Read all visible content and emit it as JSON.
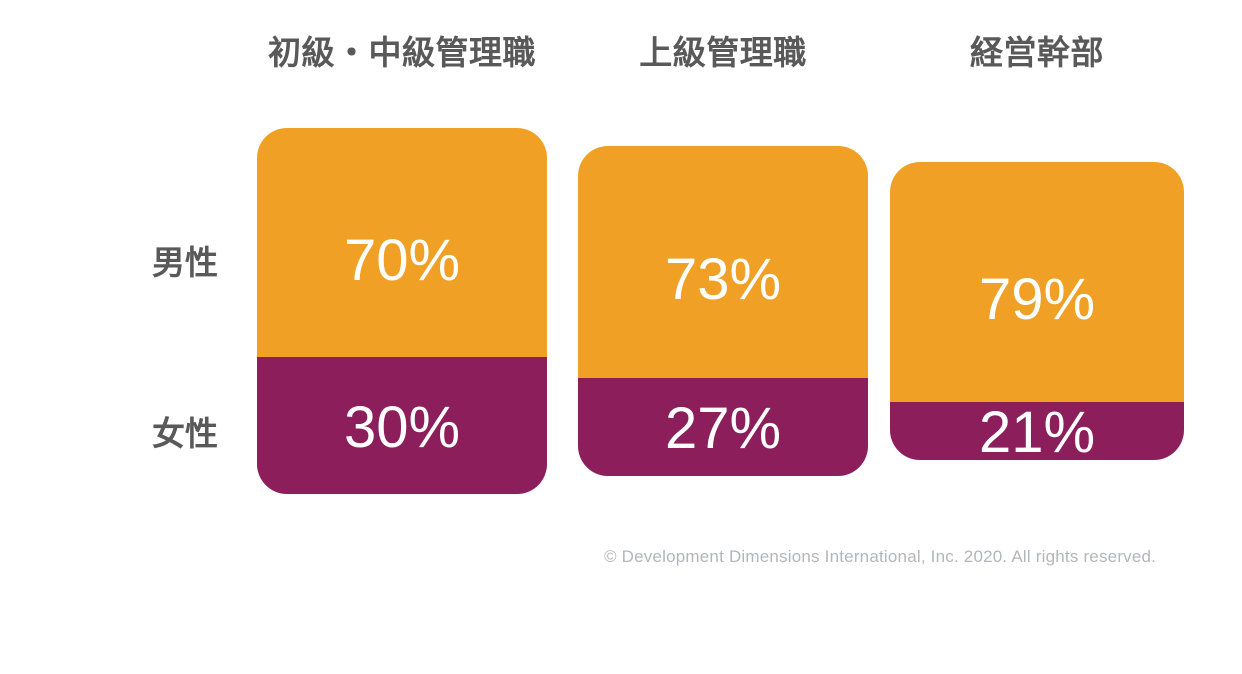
{
  "colors": {
    "male_segment": "#F0A125",
    "female_segment": "#8B1E5B",
    "header_text": "#595959",
    "value_text": "#FFFFFF",
    "footer_text": "#B2B7BC",
    "background": "#FFFFFF"
  },
  "chart_data": {
    "type": "bar",
    "subtype": "stacked-percentage-columns",
    "orientation": "vertical",
    "categories": [
      "初級・中級管理職",
      "上級管理職",
      "経営幹部"
    ],
    "series": [
      {
        "name": "男性",
        "values": [
          70,
          73,
          79
        ],
        "color": "#F0A125"
      },
      {
        "name": "女性",
        "values": [
          30,
          27,
          21
        ],
        "color": "#8B1E5B"
      }
    ],
    "value_suffix": "%",
    "value_labels_shown": true,
    "legend_position": "left",
    "axes_shown": false,
    "grid": false,
    "footer": "© Development Dimensions International, Inc. 2020. All rights reserved."
  }
}
